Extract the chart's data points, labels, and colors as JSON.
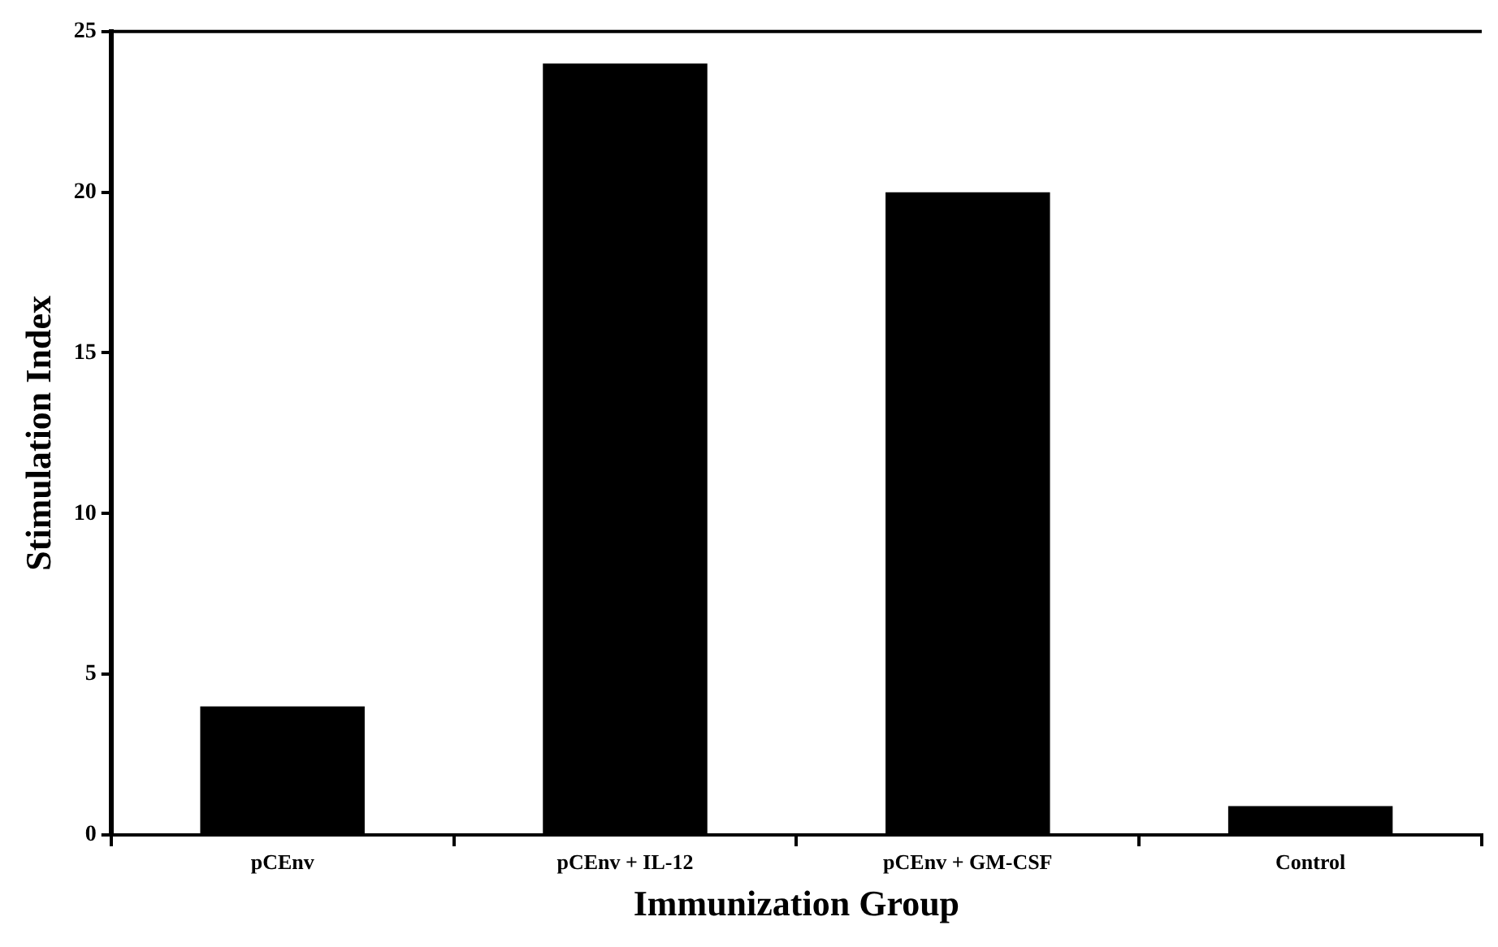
{
  "chart_data": {
    "type": "bar",
    "xlabel": "Immunization Group",
    "ylabel": "Stimulation Index",
    "categories": [
      "pCEnv",
      "pCEnv + IL-12",
      "pCEnv + GM-CSF",
      "Control"
    ],
    "values": [
      4,
      24,
      20,
      0.9
    ],
    "color": "#000000",
    "ylim": [
      0,
      25
    ],
    "yticks": [
      0,
      5,
      10,
      15,
      20,
      25
    ],
    "grid": false,
    "legend": false
  }
}
